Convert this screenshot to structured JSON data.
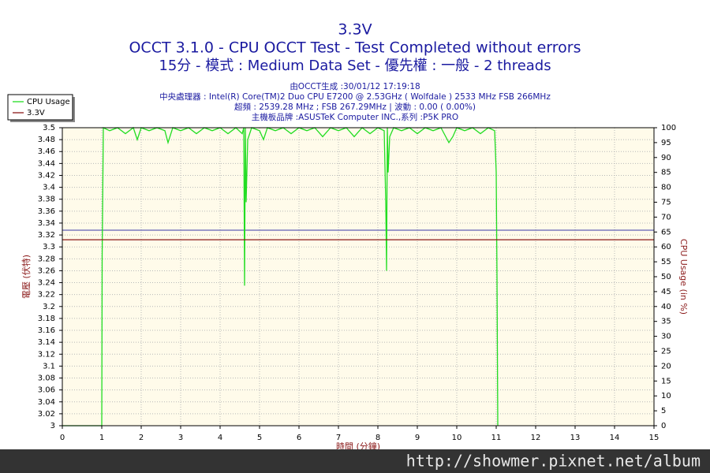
{
  "chart_data": {
    "type": "line",
    "title": "3.3V",
    "subtitle": "OCCT 3.1.0 - CPU OCCT Test - Test Completed without errors",
    "subtitle2": "15分 - 模式 : Medium Data Set - 優先權 : 一般 - 2 threads",
    "info": [
      "由OCCT生成 :30/01/12 17:19:18",
      "中央處理器 : Intel(R) Core(TM)2 Duo CPU E7200 @ 2.53GHz ( Wolfdale ) 2533 MHz FSB 266MHz",
      "超頻 : 2539.28 MHz ; FSB 267.29MHz | 波動 : 0.00 ( 0.00%)",
      "主機板品牌 :ASUSTeK Computer INC.,系列 :P5K PRO"
    ],
    "xlabel": "時間 (分鐘)",
    "ylabel": "電壓 (伏特)",
    "y2label": "CPU Usage (in %)",
    "watermark": "http://showmer.pixnet.net/album",
    "xlim": [
      0,
      15
    ],
    "xticks": [
      0,
      1,
      2,
      3,
      4,
      5,
      6,
      7,
      8,
      9,
      10,
      11,
      12,
      13,
      14,
      15
    ],
    "ylim": [
      3,
      3.5
    ],
    "yticks": [
      3,
      3.02,
      3.04,
      3.06,
      3.08,
      3.1,
      3.12,
      3.14,
      3.16,
      3.18,
      3.2,
      3.22,
      3.24,
      3.26,
      3.28,
      3.3,
      3.32,
      3.34,
      3.36,
      3.38,
      3.4,
      3.42,
      3.44,
      3.46,
      3.48,
      3.5
    ],
    "y2lim": [
      0,
      100
    ],
    "y2ticks": [
      0,
      5,
      10,
      15,
      20,
      25,
      30,
      35,
      40,
      45,
      50,
      55,
      60,
      65,
      70,
      75,
      80,
      85,
      90,
      95,
      100
    ],
    "grid": true,
    "legend": "top-left",
    "hlines": [
      {
        "value": 3.328,
        "color": "#3a3aa8"
      }
    ],
    "series": [
      {
        "name": "CPU Usage",
        "color": "#22dd22",
        "axis": "y2",
        "x": [
          0,
          1.0,
          1.01,
          1.04,
          1.2,
          1.4,
          1.6,
          1.8,
          1.9,
          2.0,
          2.2,
          2.4,
          2.6,
          2.68,
          2.8,
          3.0,
          3.2,
          3.4,
          3.6,
          3.8,
          4.0,
          4.2,
          4.4,
          4.56,
          4.6,
          4.62,
          4.64,
          4.66,
          4.7,
          4.8,
          5.0,
          5.1,
          5.2,
          5.4,
          5.6,
          5.8,
          6.0,
          6.2,
          6.4,
          6.6,
          6.8,
          7.0,
          7.2,
          7.4,
          7.6,
          7.8,
          8.0,
          8.16,
          8.2,
          8.22,
          8.24,
          8.26,
          8.3,
          8.4,
          8.6,
          8.8,
          9.0,
          9.2,
          9.4,
          9.6,
          9.8,
          9.9,
          10.0,
          10.2,
          10.4,
          10.6,
          10.8,
          10.96,
          11.0,
          11.02,
          11.04
        ],
        "values": [
          0,
          0,
          57,
          100,
          99,
          100,
          98,
          100,
          96,
          100,
          99,
          100,
          99,
          95,
          100,
          99,
          100,
          98,
          100,
          99,
          100,
          98,
          100,
          98,
          100,
          47,
          100,
          75,
          96,
          100,
          99,
          96,
          100,
          99,
          100,
          98,
          100,
          99,
          100,
          97,
          100,
          99,
          100,
          97,
          100,
          98,
          100,
          99,
          75,
          52,
          100,
          85,
          97,
          100,
          99,
          100,
          98,
          100,
          99,
          100,
          95,
          97,
          100,
          99,
          100,
          98,
          100,
          99,
          85,
          50,
          0
        ]
      },
      {
        "name": "3.3V",
        "color": "#8b1a1a",
        "x": [
          0,
          15
        ],
        "values": [
          3.312,
          3.312
        ]
      }
    ]
  }
}
